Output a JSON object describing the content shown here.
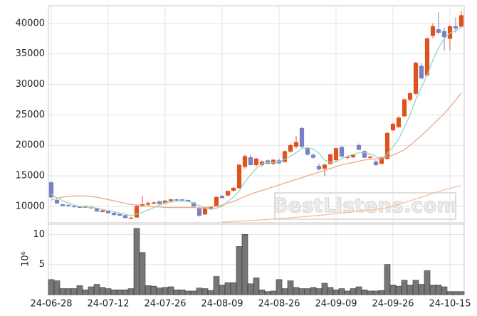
{
  "chart_data": [
    {
      "type": "candlestick",
      "open": [
        13900,
        11000,
        10300,
        10200,
        10000,
        9900,
        9800,
        9900,
        9600,
        9100,
        9200,
        8900,
        8700,
        8500,
        8000,
        8200,
        10000,
        10300,
        10500,
        10800,
        10500,
        10900,
        11100,
        11100,
        11000,
        10600,
        9600,
        8700,
        9700,
        10000,
        11700,
        11800,
        12600,
        13000,
        16500,
        18000,
        16800,
        16800,
        17500,
        17000,
        17500,
        17300,
        19000,
        19800,
        22800,
        19500,
        18400,
        16600,
        16200,
        17000,
        17600,
        19700,
        18000,
        18100,
        20000,
        19000,
        18000,
        17300,
        17000,
        17800,
        22500,
        23000,
        24800,
        27500,
        28500,
        33000,
        31500,
        38000,
        39000,
        38700,
        37500,
        39500,
        39500
      ],
      "high": [
        14100,
        11200,
        10400,
        10300,
        10200,
        10000,
        10100,
        10000,
        9700,
        9400,
        9300,
        9000,
        8800,
        8600,
        8200,
        10300,
        11700,
        10800,
        10800,
        10900,
        11000,
        11200,
        11300,
        11200,
        11100,
        10700,
        9900,
        9800,
        10000,
        11600,
        11800,
        12600,
        13200,
        16900,
        18500,
        18400,
        17900,
        17500,
        17700,
        17700,
        17800,
        19200,
        20300,
        21500,
        23000,
        19800,
        18700,
        17000,
        17000,
        18600,
        19600,
        19900,
        18300,
        18500,
        20300,
        19200,
        18300,
        17600,
        18200,
        22200,
        23700,
        24800,
        27700,
        28700,
        33700,
        33500,
        37700,
        40000,
        41800,
        39300,
        39700,
        41000,
        42000
      ],
      "low": [
        11300,
        10400,
        10000,
        10000,
        9800,
        9700,
        9700,
        9600,
        9100,
        9000,
        8800,
        8500,
        8400,
        8000,
        7900,
        8100,
        9900,
        10100,
        10300,
        10300,
        10400,
        10800,
        10900,
        10900,
        10700,
        9900,
        8300,
        8600,
        9600,
        9900,
        11300,
        11700,
        12400,
        12900,
        16200,
        16700,
        16500,
        16500,
        16900,
        16800,
        16900,
        17200,
        18800,
        19500,
        19600,
        18300,
        17800,
        15900,
        15000,
        16800,
        17400,
        18000,
        17700,
        17900,
        19200,
        17900,
        17800,
        16600,
        16900,
        17700,
        22300,
        22900,
        24600,
        27200,
        28300,
        30800,
        31300,
        37600,
        38200,
        35500,
        35500,
        38500,
        39300
      ],
      "close": [
        11500,
        10500,
        10100,
        10100,
        9900,
        9800,
        10000,
        9700,
        9200,
        9300,
        8900,
        8600,
        8500,
        8100,
        8100,
        10000,
        10300,
        10500,
        10600,
        10400,
        10900,
        11100,
        11000,
        11000,
        10800,
        10000,
        8500,
        9700,
        9900,
        11500,
        11400,
        12500,
        13000,
        16800,
        18200,
        16800,
        17800,
        17300,
        17000,
        17600,
        17100,
        19000,
        20000,
        20500,
        19800,
        18500,
        18000,
        16100,
        16800,
        18500,
        19500,
        18200,
        18100,
        18400,
        19300,
        18000,
        18100,
        16800,
        18000,
        22000,
        23500,
        24500,
        27500,
        28500,
        33500,
        31000,
        37500,
        39500,
        38500,
        37800,
        39500,
        39200,
        41300
      ],
      "up_color": "#e0521c",
      "down_color": "#7b7fc4",
      "series": [
        {
          "color": "#93d6c4",
          "values": [
            12000,
            11400,
            10900,
            10500,
            10200,
            10000,
            9900,
            9800,
            9700,
            9500,
            9300,
            9100,
            8900,
            8700,
            8500,
            8700,
            9000,
            9400,
            9800,
            10200,
            10600,
            10700,
            10800,
            10900,
            10800,
            10500,
            10100,
            9700,
            9500,
            9700,
            10000,
            10800,
            11500,
            12500,
            14000,
            15200,
            16200,
            17000,
            17200,
            17200,
            17300,
            17700,
            18200,
            18800,
            19500,
            19600,
            19400,
            18700,
            17600,
            17200,
            17300,
            17800,
            18200,
            18500,
            18800,
            18800,
            18600,
            18200,
            17800,
            18600,
            19800,
            21000,
            23000,
            25000,
            27500,
            29500,
            31500,
            34000,
            36000,
            37500,
            38400,
            38800,
            39300
          ]
        },
        {
          "color": "#e9a98a",
          "values": [
            11000,
            11300,
            11500,
            11600,
            11700,
            11700,
            11700,
            11600,
            11500,
            11300,
            11100,
            10900,
            10700,
            10500,
            10300,
            10200,
            10100,
            10000,
            9900,
            9900,
            9800,
            9800,
            9800,
            9800,
            9800,
            9800,
            9700,
            9800,
            9900,
            10000,
            10200,
            10500,
            10800,
            11200,
            11600,
            12000,
            12300,
            12600,
            12900,
            13200,
            13500,
            13800,
            14100,
            14400,
            14700,
            15000,
            15300,
            15600,
            15900,
            16200,
            16500,
            16800,
            17000,
            17200,
            17400,
            17600,
            17700,
            17800,
            17900,
            18100,
            18400,
            18800,
            19300,
            20000,
            20800,
            21600,
            22500,
            23400,
            24300,
            25200,
            26300,
            27400,
            28600
          ]
        },
        {
          "color": "#f2bfa3",
          "values": [
            null,
            null,
            null,
            null,
            null,
            null,
            null,
            null,
            null,
            null,
            null,
            null,
            null,
            null,
            null,
            null,
            null,
            null,
            null,
            null,
            null,
            null,
            null,
            null,
            null,
            null,
            null,
            null,
            null,
            null,
            7400,
            7450,
            7500,
            7560,
            7620,
            7680,
            7740,
            7800,
            7860,
            7920,
            7980,
            8040,
            8120,
            8200,
            8280,
            8360,
            8440,
            8520,
            8600,
            8700,
            8800,
            8900,
            9000,
            9100,
            9200,
            9300,
            9400,
            9500,
            9600,
            9800,
            10000,
            10300,
            10600,
            10900,
            11200,
            11500,
            11800,
            12100,
            12400,
            12700,
            12950,
            13200,
            13400
          ]
        }
      ],
      "ylim": [
        7300,
        42900
      ],
      "yticks": [
        10000,
        15000,
        20000,
        25000,
        30000,
        35000,
        40000
      ],
      "grid": true,
      "watermark": "BestListens.com"
    },
    {
      "type": "bar",
      "categories": [
        "24-06-28",
        null,
        null,
        null,
        null,
        null,
        null,
        null,
        null,
        null,
        "24-07-12",
        null,
        null,
        null,
        null,
        null,
        null,
        null,
        null,
        null,
        "24-07-26",
        null,
        null,
        null,
        null,
        null,
        null,
        null,
        null,
        null,
        "24-08-09",
        null,
        null,
        null,
        null,
        null,
        null,
        null,
        null,
        null,
        "24-08-26",
        null,
        null,
        null,
        null,
        null,
        null,
        null,
        null,
        null,
        "24-09-09",
        null,
        null,
        null,
        null,
        null,
        null,
        null,
        null,
        null,
        "24-09-26",
        null,
        null,
        null,
        null,
        null,
        null,
        null,
        null,
        null,
        "24-10-15",
        null,
        null
      ],
      "values": [
        2.5,
        2.3,
        1.0,
        1.0,
        1.0,
        1.5,
        0.8,
        1.3,
        1.7,
        1.2,
        1.0,
        0.8,
        0.8,
        0.8,
        1.0,
        11.0,
        7.0,
        1.5,
        1.4,
        1.1,
        1.2,
        1.3,
        0.8,
        0.8,
        0.6,
        0.6,
        1.1,
        1.0,
        0.7,
        3.0,
        1.6,
        2.0,
        2.0,
        8.0,
        10.0,
        1.8,
        2.8,
        0.8,
        0.5,
        0.6,
        2.5,
        1.0,
        2.3,
        1.2,
        1.0,
        1.0,
        1.2,
        1.0,
        1.9,
        1.2,
        0.8,
        1.0,
        0.6,
        1.0,
        1.3,
        0.8,
        0.6,
        0.6,
        0.7,
        5.0,
        1.6,
        1.4,
        2.4,
        1.6,
        2.4,
        1.7,
        4.0,
        1.6,
        1.6,
        1.3,
        0.5,
        0.5,
        0.5
      ],
      "color": "#767676",
      "ylim": [
        0,
        11.7
      ],
      "yticks": [
        5,
        10
      ],
      "grid": true,
      "y_label": "10⁶"
    }
  ]
}
